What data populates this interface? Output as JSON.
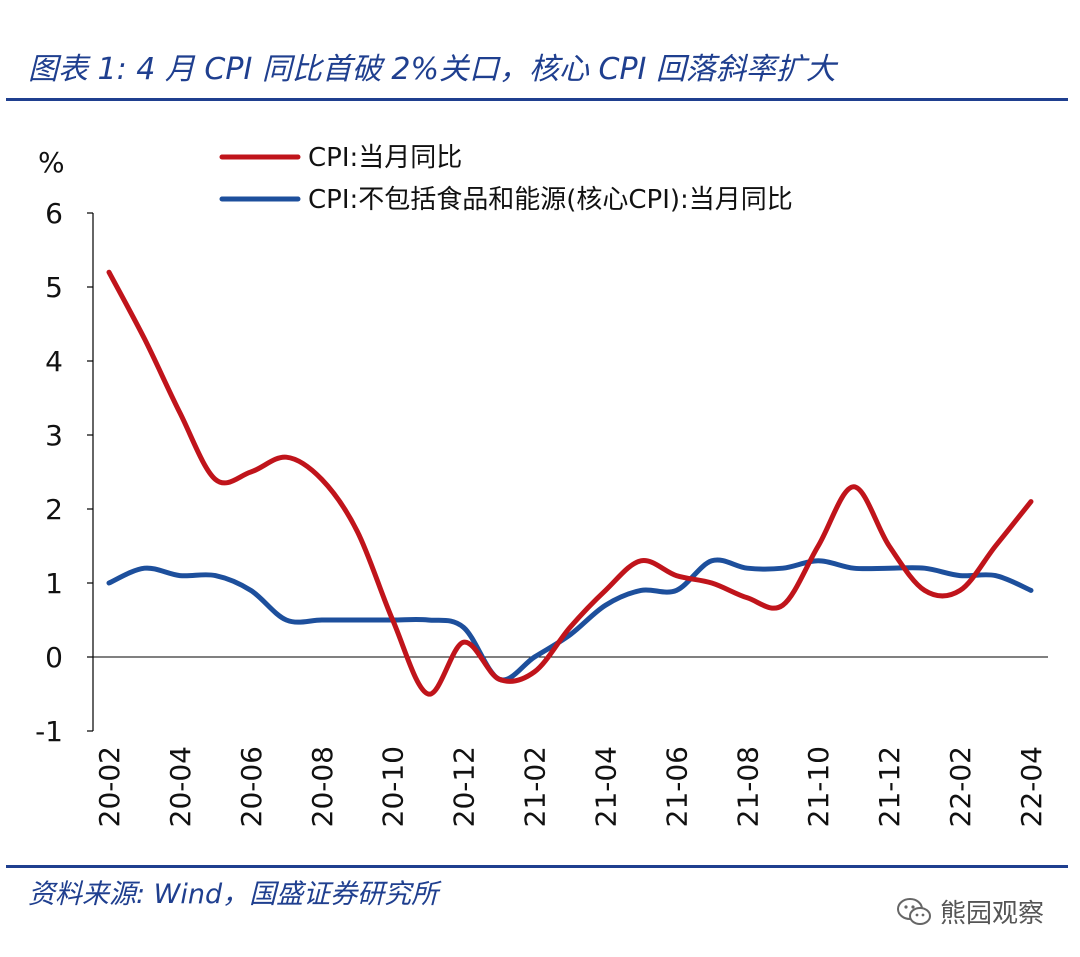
{
  "header": {
    "title": "图表 1:  4 月 CPI 同比首破 2%关口，核心 CPI 回落斜率扩大"
  },
  "footer": {
    "source": "资料来源:  Wind，国盛证券研究所",
    "watermark": "熊园观察"
  },
  "colors": {
    "brand_blue": "#1f3f8f",
    "cpi_red": "#c0141b",
    "core_blue": "#1d4f9c"
  },
  "chart_data": {
    "type": "line",
    "title": "",
    "ylabel": "%",
    "xlabel": "",
    "ylim": [
      -1,
      6
    ],
    "yticks": [
      "-1",
      "0",
      "1",
      "2",
      "3",
      "4",
      "5",
      "6"
    ],
    "categories": [
      "20-02",
      "20-03",
      "20-04",
      "20-05",
      "20-06",
      "20-07",
      "20-08",
      "20-09",
      "20-10",
      "20-11",
      "20-12",
      "21-01",
      "21-02",
      "21-03",
      "21-04",
      "21-05",
      "21-06",
      "21-07",
      "21-08",
      "21-09",
      "21-10",
      "21-11",
      "21-12",
      "22-01",
      "22-02",
      "22-03",
      "22-04"
    ],
    "xtick_labels": [
      "20-02",
      "20-04",
      "20-06",
      "20-08",
      "20-10",
      "20-12",
      "21-02",
      "21-04",
      "21-06",
      "21-08",
      "21-10",
      "21-12",
      "22-02",
      "22-04"
    ],
    "legend": "top-left",
    "series": [
      {
        "name": "CPI:当月同比",
        "color": "#c0141b",
        "values": [
          5.2,
          4.3,
          3.3,
          2.4,
          2.5,
          2.7,
          2.4,
          1.7,
          0.5,
          -0.5,
          0.2,
          -0.3,
          -0.2,
          0.4,
          0.9,
          1.3,
          1.1,
          1.0,
          0.8,
          0.7,
          1.5,
          2.3,
          1.5,
          0.9,
          0.9,
          1.5,
          2.1
        ]
      },
      {
        "name": "CPI:不包括食品和能源(核心CPI):当月同比",
        "color": "#1d4f9c",
        "values": [
          1.0,
          1.2,
          1.1,
          1.1,
          0.9,
          0.5,
          0.5,
          0.5,
          0.5,
          0.5,
          0.4,
          -0.3,
          0.0,
          0.3,
          0.7,
          0.9,
          0.9,
          1.3,
          1.2,
          1.2,
          1.3,
          1.2,
          1.2,
          1.2,
          1.1,
          1.1,
          0.9
        ]
      }
    ]
  }
}
